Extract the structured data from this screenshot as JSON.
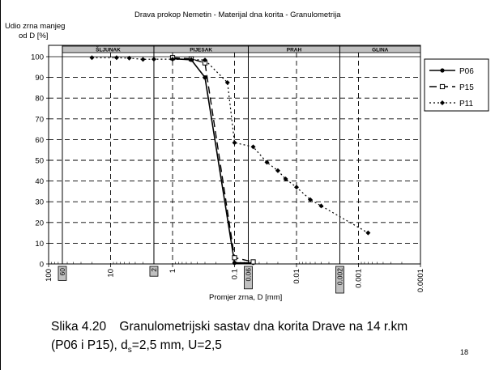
{
  "chart_data": {
    "type": "line",
    "title": "Drava prokop Nemetin - Materijal dna korita - Granulometrija",
    "ylabel": [
      "Udio zrna manjeg",
      "od D [%]"
    ],
    "xlabel": "Promjer zrna, D [mm]",
    "x_scale": "log",
    "x_reversed": true,
    "xlim": [
      100,
      0.0001
    ],
    "ylim": [
      0,
      100
    ],
    "y_ticks": [
      "0",
      "10",
      "20",
      "30",
      "40",
      "50",
      "60",
      "70",
      "80",
      "90",
      "100"
    ],
    "x_ticks": [
      {
        "value": 100,
        "label": "100"
      },
      {
        "value": 10,
        "label": "10"
      },
      {
        "value": 1,
        "label": "1"
      },
      {
        "value": 0.1,
        "label": "0.1"
      },
      {
        "value": 0.01,
        "label": "0.01"
      },
      {
        "value": 0.001,
        "label": "0.001"
      },
      {
        "value": 0.0001,
        "label": "0.0001"
      }
    ],
    "boxed_ticks": [
      {
        "value": 60,
        "label": "60"
      },
      {
        "value": 2,
        "label": "2"
      },
      {
        "value": 0.06,
        "label": "0.06"
      },
      {
        "value": 0.002,
        "label": "0.002"
      }
    ],
    "grid": true,
    "classes": [
      {
        "name": "ŠLJUNAK",
        "from": 60,
        "to": 2
      },
      {
        "name": "PIJESAK",
        "from": 2,
        "to": 0.06
      },
      {
        "name": "PRAH",
        "from": 0.06,
        "to": 0.002
      },
      {
        "name": "GLINA",
        "from": 0.002,
        "to": 0.0001
      }
    ],
    "series": [
      {
        "name": "P06",
        "style": "solid",
        "marker": "filled-circle",
        "color": "#000000",
        "points": [
          [
            1.0,
            99
          ],
          [
            0.5,
            98.5
          ],
          [
            0.3,
            90
          ],
          [
            0.1,
            0.5
          ],
          [
            0.05,
            0.5
          ]
        ]
      },
      {
        "name": "P15",
        "style": "dashed",
        "marker": "open-square",
        "color": "#000000",
        "points": [
          [
            1.0,
            99.5
          ],
          [
            0.5,
            99
          ],
          [
            0.3,
            97
          ],
          [
            0.1,
            3
          ],
          [
            0.05,
            1
          ]
        ]
      },
      {
        "name": "P11",
        "style": "dotted",
        "marker": "filled-diamond",
        "color": "#000000",
        "points": [
          [
            20,
            99.5
          ],
          [
            8,
            99.5
          ],
          [
            5,
            99.3
          ],
          [
            3,
            98.7
          ],
          [
            2,
            98.8
          ],
          [
            1,
            98.8
          ],
          [
            0.5,
            98.6
          ],
          [
            0.3,
            98.4
          ],
          [
            0.13,
            87.5
          ],
          [
            0.1,
            58.5
          ],
          [
            0.05,
            56.5
          ],
          [
            0.03,
            49
          ],
          [
            0.02,
            45
          ],
          [
            0.015,
            41
          ],
          [
            0.01,
            37
          ],
          [
            0.006,
            31
          ],
          [
            0.004,
            28
          ],
          [
            0.0007,
            15
          ]
        ]
      }
    ],
    "legend_position": "right"
  },
  "caption": {
    "label": "Slika 4.20",
    "line1": "Granulometrijski sastav dna korita Drave na 14 r.km",
    "line2_text": "(P06 i P15), d",
    "line2_sub": "s",
    "line2_rest": "=2,5 mm, U=2,5"
  },
  "page_number": "18"
}
